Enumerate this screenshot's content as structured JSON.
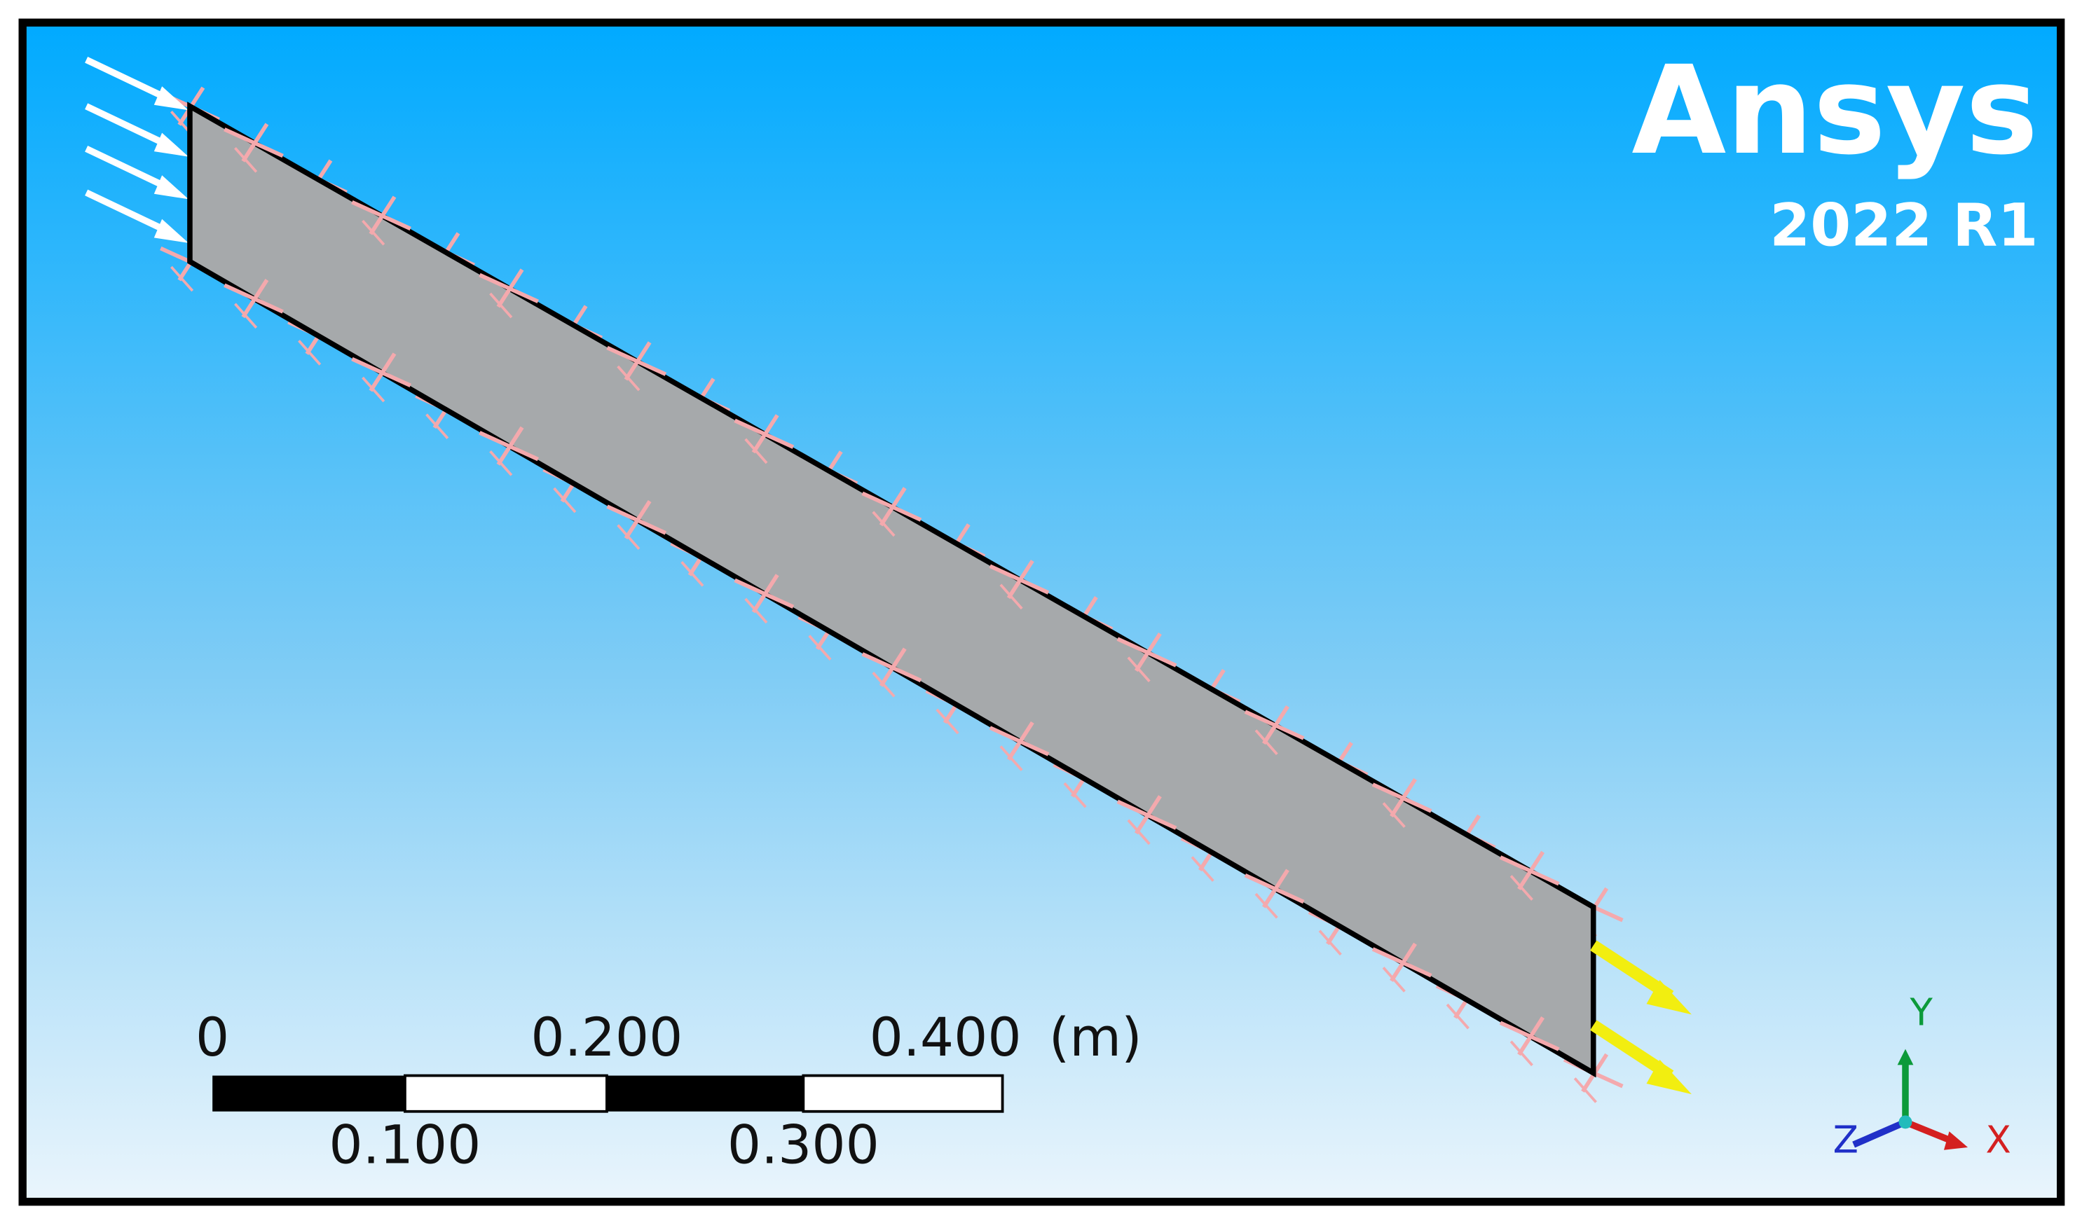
{
  "logo": {
    "name": "Ansys",
    "version": "2022 R1"
  },
  "scale_bar": {
    "top_labels": [
      "0",
      "0.200",
      "0.400"
    ],
    "unit": "(m)",
    "bottom_labels": [
      "0.100",
      "0.300"
    ]
  },
  "triad": {
    "y": "Y",
    "x": "X",
    "z": "Z"
  }
}
